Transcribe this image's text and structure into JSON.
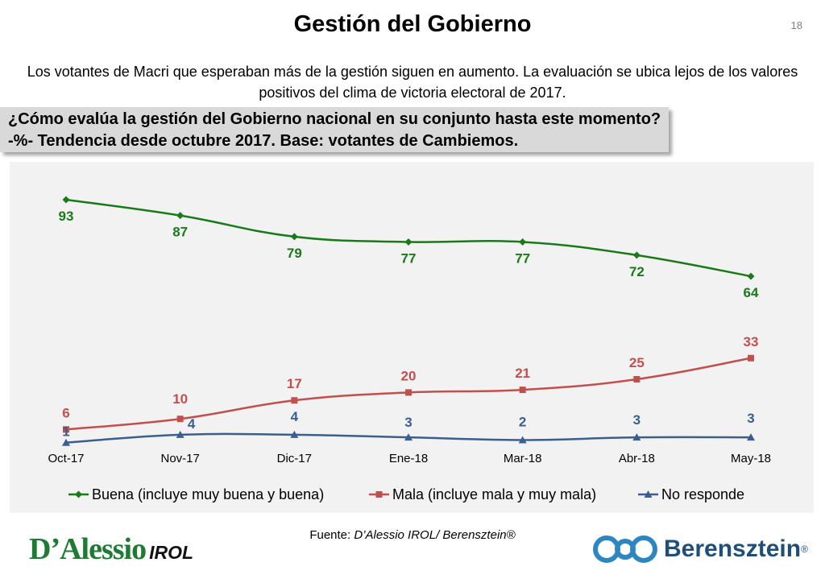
{
  "header": {
    "title": "Gestión del Gobierno",
    "page_number": "18",
    "subtitle": "Los votantes de Macri que esperaban más de la gestión siguen en aumento. La evaluación se ubica lejos de los valores positivos del clima de victoria electoral de 2017.",
    "question": "¿Cómo evalúa la gestión del Gobierno nacional en su conjunto hasta este momento? -%- Tendencia desde octubre 2017. Base: votantes de Cambiemos."
  },
  "footer": {
    "source_label": "Fuente: ",
    "source_text": "D’Alessio IROL/ Berensztein®",
    "logo_left_main": "D’Alessio",
    "logo_left_sub": "IROL",
    "logo_right_name": "Berensztein",
    "logo_right_mark": "®"
  },
  "chart_data": {
    "type": "line",
    "categories": [
      "Oct-17",
      "Nov-17",
      "Dic-17",
      "Ene-18",
      "Mar-18",
      "Abr-18",
      "May-18"
    ],
    "series": [
      {
        "name": "Buena (incluye muy buena y buena)",
        "values": [
          93,
          87,
          79,
          77,
          77,
          72,
          64
        ],
        "color": "#1a7a1a",
        "marker": "diamond"
      },
      {
        "name": "Mala (incluye mala y muy mala)",
        "values": [
          6,
          10,
          17,
          20,
          21,
          25,
          33
        ],
        "color": "#c0504d",
        "marker": "square"
      },
      {
        "name": "No responde",
        "values": [
          1,
          4,
          4,
          3,
          2,
          3,
          3
        ],
        "color": "#3a5f8f",
        "marker": "triangle"
      }
    ],
    "ylim": [
      0,
      100
    ],
    "grid": false,
    "legend_position": "bottom",
    "data_labels": true,
    "background": "#f2f2f2"
  }
}
